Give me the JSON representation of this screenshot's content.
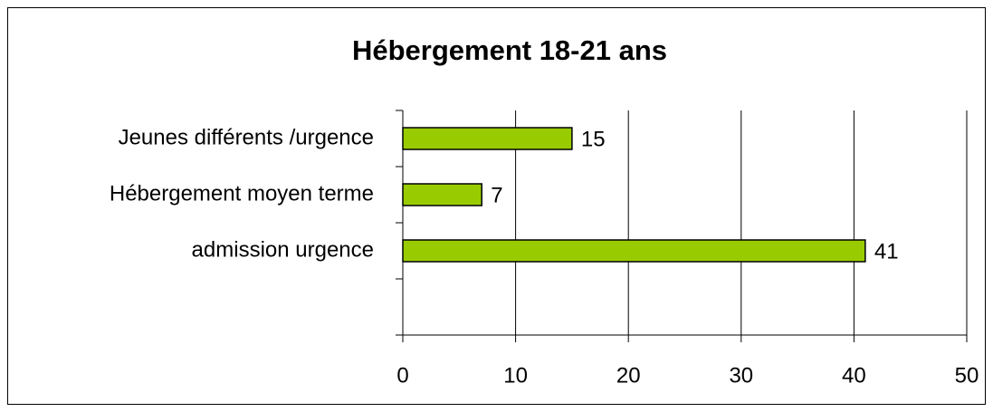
{
  "chart_data": {
    "type": "bar",
    "orientation": "horizontal",
    "title": "Hébergement 18-21 ans",
    "categories": [
      "Jeunes différents /urgence",
      "Hébergement moyen terme",
      "admission urgence",
      null
    ],
    "values": [
      15,
      7,
      41,
      null
    ],
    "color": "#99cc00",
    "xlim": [
      0,
      50
    ],
    "xticks": [
      0,
      10,
      20,
      30,
      40,
      50
    ],
    "grid": true
  }
}
